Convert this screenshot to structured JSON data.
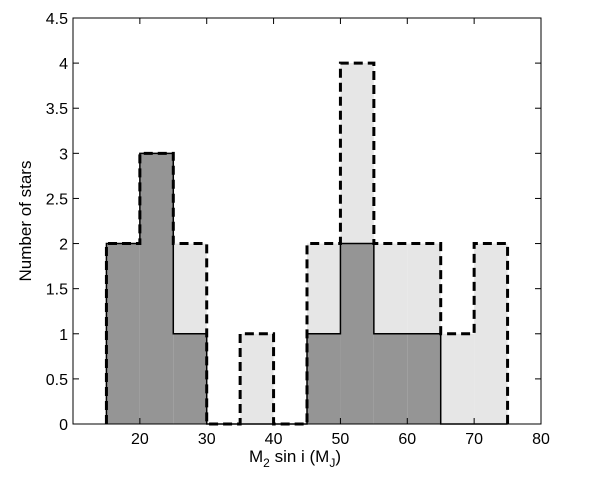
{
  "chart_data": {
    "type": "bar",
    "subtype": "overlaid-histogram",
    "xlabel": {
      "prefix": "M",
      "prefix_sub": "2",
      "middle": " sin i  (M",
      "unit_sub": "J",
      "suffix": ")"
    },
    "ylabel": "Number of stars",
    "xlim": [
      10,
      80
    ],
    "ylim": [
      0,
      4.5
    ],
    "x_ticks": [
      20,
      30,
      40,
      50,
      60,
      70,
      80
    ],
    "x_tick_labels": [
      "20",
      "30",
      "40",
      "50",
      "60",
      "70",
      "80"
    ],
    "y_ticks": [
      0,
      0.5,
      1,
      1.5,
      2,
      2.5,
      3,
      3.5,
      4,
      4.5
    ],
    "y_tick_labels": [
      "0",
      "0.5",
      "1",
      "1.5",
      "2",
      "2.5",
      "3",
      "3.5",
      "4",
      "4.5"
    ],
    "bin_edges": [
      15,
      20,
      25,
      30,
      35,
      40,
      45,
      50,
      55,
      60,
      65,
      70,
      75
    ],
    "grid": false,
    "series": [
      {
        "values": [
          2,
          3,
          2,
          0,
          1,
          0,
          2,
          4,
          2,
          2,
          1,
          2
        ],
        "fill": "#e6e6e6",
        "line_style": "dashed"
      },
      {
        "values": [
          2,
          3,
          1,
          0,
          0,
          0,
          1,
          2,
          1,
          1,
          0,
          0
        ],
        "fill": "#959595",
        "line_style": "solid"
      }
    ]
  }
}
